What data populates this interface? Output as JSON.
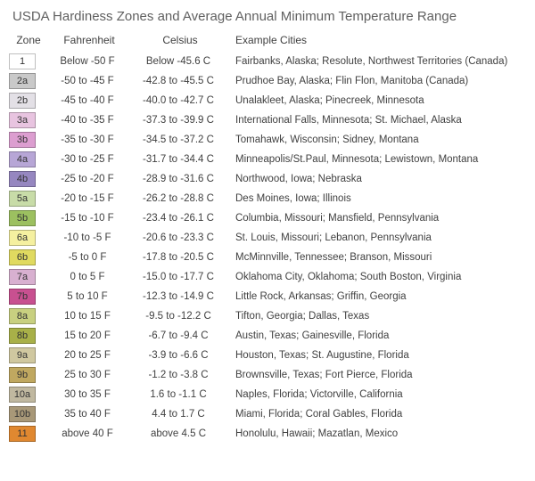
{
  "title": "USDA Hardiness Zones and Average Annual Minimum Temperature Range",
  "columns": {
    "zone": "Zone",
    "fahrenheit": "Fahrenheit",
    "celsius": "Celsius",
    "examples": "Example Cities"
  },
  "text_color": "#404040",
  "background_color": "#ffffff",
  "swatch_border_color": "rgba(0,0,0,0.25)",
  "label_text_colors": {
    "light": "#333333",
    "dark": "#333333"
  },
  "rows": [
    {
      "zone": "1",
      "color": "#ffffff",
      "f": "Below -50 F",
      "c": "Below -45.6 C",
      "ex": "Fairbanks, Alaska;   Resolute, Northwest Territories (Canada)"
    },
    {
      "zone": "2a",
      "color": "#c9c9c9",
      "f": "-50 to -45 F",
      "c": "-42.8 to -45.5 C",
      "ex": "Prudhoe Bay, Alaska;   Flin Flon, Manitoba (Canada)"
    },
    {
      "zone": "2b",
      "color": "#e3e0e6",
      "f": "-45 to -40 F",
      "c": "-40.0 to -42.7 C",
      "ex": "Unalakleet, Alaska;   Pinecreek, Minnesota"
    },
    {
      "zone": "3a",
      "color": "#e8c4e0",
      "f": "-40 to -35 F",
      "c": "-37.3 to -39.9 C",
      "ex": "International Falls, Minnesota;   St. Michael, Alaska"
    },
    {
      "zone": "3b",
      "color": "#dc9ed0",
      "f": "-35 to -30 F",
      "c": "-34.5 to -37.2 C",
      "ex": "Tomahawk, Wisconsin;   Sidney, Montana"
    },
    {
      "zone": "4a",
      "color": "#b7a6d6",
      "f": "-30 to -25 F",
      "c": "-31.7 to -34.4 C",
      "ex": "Minneapolis/St.Paul, Minnesota;   Lewistown, Montana"
    },
    {
      "zone": "4b",
      "color": "#9687c0",
      "f": "-25 to -20 F",
      "c": "-28.9 to -31.6 C",
      "ex": "Northwood, Iowa;  Nebraska"
    },
    {
      "zone": "5a",
      "color": "#c8dca8",
      "f": "-20 to -15 F",
      "c": "-26.2 to -28.8 C",
      "ex": "Des Moines, Iowa;   Illinois"
    },
    {
      "zone": "5b",
      "color": "#9cc060",
      "f": "-15 to -10 F",
      "c": "-23.4 to -26.1 C",
      "ex": "Columbia, Missouri;   Mansfield, Pennsylvania"
    },
    {
      "zone": "6a",
      "color": "#f5f0a0",
      "f": "-10 to -5 F",
      "c": "-20.6 to -23.3 C",
      "ex": "St. Louis, Missouri;  Lebanon, Pennsylvania"
    },
    {
      "zone": "6b",
      "color": "#e0da60",
      "f": "-5 to 0 F",
      "c": "-17.8 to -20.5 C",
      "ex": "McMinnville, Tennessee;   Branson, Missouri"
    },
    {
      "zone": "7a",
      "color": "#d8b0d0",
      "f": "0 to 5 F",
      "c": "-15.0 to -17.7 C",
      "ex": "Oklahoma City, Oklahoma;   South Boston, Virginia"
    },
    {
      "zone": "7b",
      "color": "#c85090",
      "f": "5 to 10 F",
      "c": "-12.3 to -14.9 C",
      "ex": "Little Rock, Arkansas;   Griffin, Georgia"
    },
    {
      "zone": "8a",
      "color": "#c8d080",
      "f": "10 to 15 F",
      "c": "-9.5 to -12.2 C",
      "ex": "Tifton, Georgia;   Dallas, Texas"
    },
    {
      "zone": "8b",
      "color": "#a8b048",
      "f": "15 to 20 F",
      "c": "-6.7 to -9.4 C",
      "ex": "Austin, Texas;   Gainesville, Florida"
    },
    {
      "zone": "9a",
      "color": "#d0c8a0",
      "f": "20 to 25 F",
      "c": "-3.9 to -6.6 C",
      "ex": "Houston, Texas;   St. Augustine, Florida"
    },
    {
      "zone": "9b",
      "color": "#c0a860",
      "f": "25 to 30 F",
      "c": "-1.2 to -3.8 C",
      "ex": "Brownsville, Texas;   Fort Pierce, Florida"
    },
    {
      "zone": "10a",
      "color": "#c0b8a0",
      "f": "30 to 35 F",
      "c": "1.6 to -1.1 C",
      "ex": "Naples, Florida;   Victorville, California"
    },
    {
      "zone": "10b",
      "color": "#a89878",
      "f": "35 to 40 F",
      "c": "4.4 to 1.7 C",
      "ex": "Miami, Florida;   Coral Gables, Florida"
    },
    {
      "zone": "11",
      "color": "#e08830",
      "f": "above 40 F",
      "c": "above 4.5 C",
      "ex": "Honolulu, Hawaii;   Mazatlan, Mexico"
    }
  ]
}
